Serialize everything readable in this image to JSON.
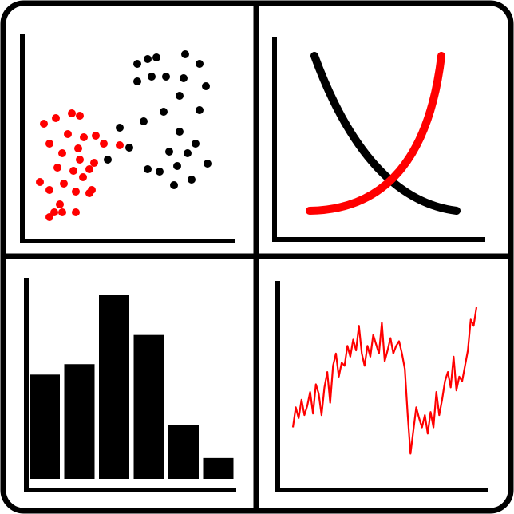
{
  "icon": {
    "name": "charts-grid-icon",
    "colors": {
      "ink": "#000000",
      "accent": "#ff0000",
      "background": "#ffffff"
    }
  },
  "chart_data": [
    {
      "type": "scatter",
      "series": [
        {
          "color": "#ff0000",
          "points": [
            [
              55,
              155
            ],
            [
              70,
              148
            ],
            [
              90,
              142
            ],
            [
              100,
              145
            ],
            [
              62,
              180
            ],
            [
              85,
              168
            ],
            [
              105,
              172
            ],
            [
              120,
              170
            ],
            [
              130,
              180
            ],
            [
              150,
              182
            ],
            [
              78,
              192
            ],
            [
              98,
              186
            ],
            [
              118,
              204
            ],
            [
              72,
              210
            ],
            [
              92,
              214
            ],
            [
              112,
              212
            ],
            [
              50,
              228
            ],
            [
              80,
              230
            ],
            [
              104,
              222
            ],
            [
              62,
              238
            ],
            [
              95,
              240
            ],
            [
              115,
              238
            ],
            [
              75,
              256
            ],
            [
              68,
              266
            ],
            [
              78,
              266
            ],
            [
              95,
              266
            ],
            [
              62,
              272
            ],
            [
              100,
              200
            ],
            [
              112,
              242
            ]
          ]
        },
        {
          "color": "#000000",
          "points": [
            [
              172,
              80
            ],
            [
              185,
              74
            ],
            [
              196,
              72
            ],
            [
              232,
              68
            ],
            [
              250,
              80
            ],
            [
              190,
              96
            ],
            [
              208,
              96
            ],
            [
              230,
              98
            ],
            [
              258,
              108
            ],
            [
              172,
              102
            ],
            [
              225,
              120
            ],
            [
              250,
              138
            ],
            [
              205,
              140
            ],
            [
              180,
              152
            ],
            [
              150,
              160
            ],
            [
              225,
              165
            ],
            [
              245,
              180
            ],
            [
              212,
              190
            ],
            [
              235,
              192
            ],
            [
              260,
              205
            ],
            [
              162,
              185
            ],
            [
              135,
              200
            ],
            [
              185,
              212
            ],
            [
              200,
              215
            ],
            [
              222,
              208
            ],
            [
              240,
              225
            ],
            [
              218,
              232
            ]
          ]
        }
      ]
    },
    {
      "type": "line",
      "series": [
        {
          "color": "#000000",
          "shape": "decreasing"
        },
        {
          "color": "#ff0000",
          "shape": "increasing"
        }
      ]
    },
    {
      "type": "bar",
      "values": [
        5.0,
        5.5,
        8.8,
        6.9,
        2.6,
        1.0
      ]
    },
    {
      "type": "line",
      "series": [
        {
          "color": "#ff0000",
          "values": [
            0.22,
            0.35,
            0.28,
            0.4,
            0.3,
            0.36,
            0.45,
            0.31,
            0.5,
            0.44,
            0.3,
            0.48,
            0.58,
            0.38,
            0.62,
            0.7,
            0.55,
            0.64,
            0.62,
            0.75,
            0.68,
            0.79,
            0.72,
            0.88,
            0.7,
            0.62,
            0.75,
            0.68,
            0.82,
            0.76,
            0.7,
            0.9,
            0.65,
            0.72,
            0.8,
            0.7,
            0.75,
            0.78,
            0.7,
            0.6,
            0.3,
            0.05,
            0.2,
            0.35,
            0.28,
            0.22,
            0.3,
            0.18,
            0.32,
            0.22,
            0.45,
            0.3,
            0.4,
            0.52,
            0.58,
            0.48,
            0.68,
            0.46,
            0.55,
            0.52,
            0.62,
            0.72,
            0.92,
            0.88,
            1.0
          ]
        }
      ]
    }
  ]
}
